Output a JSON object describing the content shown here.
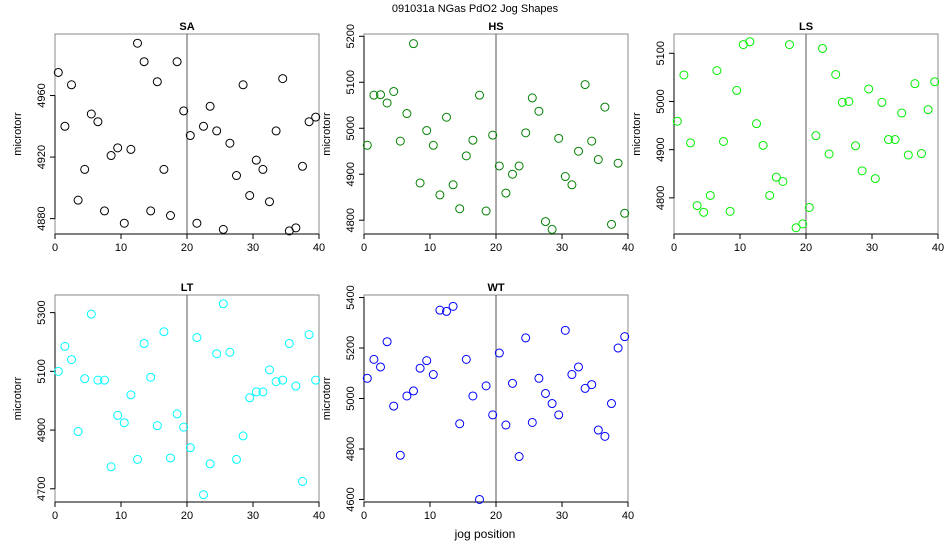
{
  "figure": {
    "title": "091031a   NGas PdO2 Jog Shapes",
    "xlabel": "jog position"
  },
  "chart_data": [
    {
      "type": "scatter",
      "title": "SA",
      "ylabel": "microtorr",
      "color": "#000000",
      "xlim": [
        0,
        40
      ],
      "ylim": [
        4870,
        5000
      ],
      "xticks": [
        0,
        10,
        20,
        30,
        40
      ],
      "yticks": [
        4880,
        4920,
        4960
      ],
      "vline": 20,
      "x": [
        0.5,
        1.5,
        2.5,
        3.5,
        4.5,
        5.5,
        6.5,
        7.5,
        8.5,
        9.5,
        10.5,
        11.5,
        12.5,
        13.5,
        14.5,
        15.5,
        16.5,
        17.5,
        18.5,
        19.5,
        20.5,
        21.5,
        22.5,
        23.5,
        24.5,
        25.5,
        26.5,
        27.5,
        28.5,
        29.5,
        30.5,
        31.5,
        32.5,
        33.5,
        34.5,
        35.5,
        36.5,
        37.5,
        38.5,
        39.5
      ],
      "y": [
        4975,
        4940,
        4967,
        4892,
        4912,
        4948,
        4943,
        4885,
        4921,
        4926,
        4877,
        4925,
        4994,
        4982,
        4885,
        4969,
        4912,
        4882,
        4982,
        4950,
        4934,
        4877,
        4940,
        4953,
        4937,
        4873,
        4929,
        4908,
        4967,
        4895,
        4918,
        4912,
        4891,
        4937,
        4971,
        4872,
        4874,
        4914,
        4943,
        4946
      ]
    },
    {
      "type": "scatter",
      "title": "HS",
      "ylabel": "microtorr",
      "color": "#008000",
      "xlim": [
        0,
        40
      ],
      "ylim": [
        4770,
        5205
      ],
      "xticks": [
        0,
        10,
        20,
        30,
        40
      ],
      "yticks": [
        4800,
        4900,
        5000,
        5100,
        5200
      ],
      "vline": 20,
      "x": [
        0.5,
        1.5,
        2.5,
        3.5,
        4.5,
        5.5,
        6.5,
        7.5,
        8.5,
        9.5,
        10.5,
        11.5,
        12.5,
        13.5,
        14.5,
        15.5,
        16.5,
        17.5,
        18.5,
        19.5,
        20.5,
        21.5,
        22.5,
        23.5,
        24.5,
        25.5,
        26.5,
        27.5,
        28.5,
        29.5,
        30.5,
        31.5,
        32.5,
        33.5,
        34.5,
        35.5,
        36.5,
        37.5,
        38.5,
        39.5
      ],
      "y": [
        4963,
        5072,
        5073,
        5055,
        5080,
        4972,
        5032,
        5184,
        4881,
        4995,
        4963,
        4855,
        5024,
        4877,
        4825,
        4940,
        4974,
        5072,
        4820,
        4985,
        4918,
        4859,
        4900,
        4918,
        4990,
        5066,
        5037,
        4797,
        4780,
        4978,
        4895,
        4877,
        4950,
        5095,
        4972,
        4932,
        5046,
        4791,
        4924,
        4815
      ]
    },
    {
      "type": "scatter",
      "title": "LS",
      "ylabel": "microtorr",
      "color": "#00ee00",
      "xlim": [
        0,
        40
      ],
      "ylim": [
        4725,
        5140
      ],
      "xticks": [
        0,
        10,
        20,
        30,
        40
      ],
      "yticks": [
        4800,
        4900,
        5000,
        5100
      ],
      "vline": 20,
      "x": [
        0.5,
        1.5,
        2.5,
        3.5,
        4.5,
        5.5,
        6.5,
        7.5,
        8.5,
        9.5,
        10.5,
        11.5,
        12.5,
        13.5,
        14.5,
        15.5,
        16.5,
        17.5,
        18.5,
        19.5,
        20.5,
        21.5,
        22.5,
        23.5,
        24.5,
        25.5,
        26.5,
        27.5,
        28.5,
        29.5,
        30.5,
        31.5,
        32.5,
        33.5,
        34.5,
        35.5,
        36.5,
        37.5,
        38.5,
        39.5
      ],
      "y": [
        4959,
        5055,
        4914,
        4784,
        4770,
        4805,
        5064,
        4917,
        4772,
        5023,
        5118,
        5124,
        4954,
        4909,
        4805,
        4843,
        4834,
        5118,
        4738,
        4746,
        4780,
        4929,
        5110,
        4891,
        5056,
        4998,
        5000,
        4908,
        4856,
        5026,
        4840,
        4998,
        4921,
        4921,
        4976,
        4889,
        5037,
        4892,
        4983,
        5041
      ]
    },
    {
      "type": "scatter",
      "title": "LT",
      "ylabel": "microtorr",
      "color": "#00ffff",
      "xlim": [
        0,
        40
      ],
      "ylim": [
        4655,
        5360
      ],
      "xticks": [
        0,
        10,
        20,
        30,
        40
      ],
      "yticks": [
        4700,
        4900,
        5100,
        5300
      ],
      "vline": 20,
      "x": [
        0.5,
        1.5,
        2.5,
        3.5,
        4.5,
        5.5,
        6.5,
        7.5,
        8.5,
        9.5,
        10.5,
        11.5,
        12.5,
        13.5,
        14.5,
        15.5,
        16.5,
        17.5,
        18.5,
        19.5,
        20.5,
        21.5,
        22.5,
        23.5,
        24.5,
        25.5,
        26.5,
        27.5,
        28.5,
        29.5,
        30.5,
        31.5,
        32.5,
        33.5,
        34.5,
        35.5,
        36.5,
        37.5,
        38.5,
        39.5
      ],
      "y": [
        5100,
        5185,
        5140,
        4895,
        5075,
        5295,
        5070,
        5070,
        4775,
        4950,
        4925,
        5020,
        4800,
        5195,
        5080,
        4915,
        5235,
        4805,
        4955,
        4910,
        4840,
        5215,
        4680,
        4785,
        5160,
        5330,
        5165,
        4800,
        4880,
        5010,
        5030,
        5030,
        5105,
        5065,
        5070,
        5195,
        5050,
        4725,
        5225,
        5070
      ]
    },
    {
      "type": "scatter",
      "title": "WT",
      "ylabel": "microtorr",
      "color": "#0000ff",
      "xlim": [
        0,
        40
      ],
      "ylim": [
        4590,
        5410
      ],
      "xticks": [
        0,
        10,
        20,
        30,
        40
      ],
      "yticks": [
        4600,
        4800,
        5000,
        5200,
        5400
      ],
      "vline": 20,
      "x": [
        0.5,
        1.5,
        2.5,
        3.5,
        4.5,
        5.5,
        6.5,
        7.5,
        8.5,
        9.5,
        10.5,
        11.5,
        12.5,
        13.5,
        14.5,
        15.5,
        16.5,
        17.5,
        18.5,
        19.5,
        20.5,
        21.5,
        22.5,
        23.5,
        24.5,
        25.5,
        26.5,
        27.5,
        28.5,
        29.5,
        30.5,
        31.5,
        32.5,
        33.5,
        34.5,
        35.5,
        36.5,
        37.5,
        38.5,
        39.5
      ],
      "y": [
        5080,
        5155,
        5125,
        5225,
        4970,
        4775,
        5010,
        5030,
        5120,
        5150,
        5095,
        5350,
        5345,
        5365,
        4900,
        5155,
        5010,
        4600,
        5050,
        4935,
        5180,
        4895,
        5060,
        4770,
        5240,
        4905,
        5080,
        5020,
        4980,
        4935,
        5270,
        5095,
        5125,
        5040,
        5055,
        4875,
        4850,
        4980,
        5200,
        5245
      ]
    }
  ]
}
